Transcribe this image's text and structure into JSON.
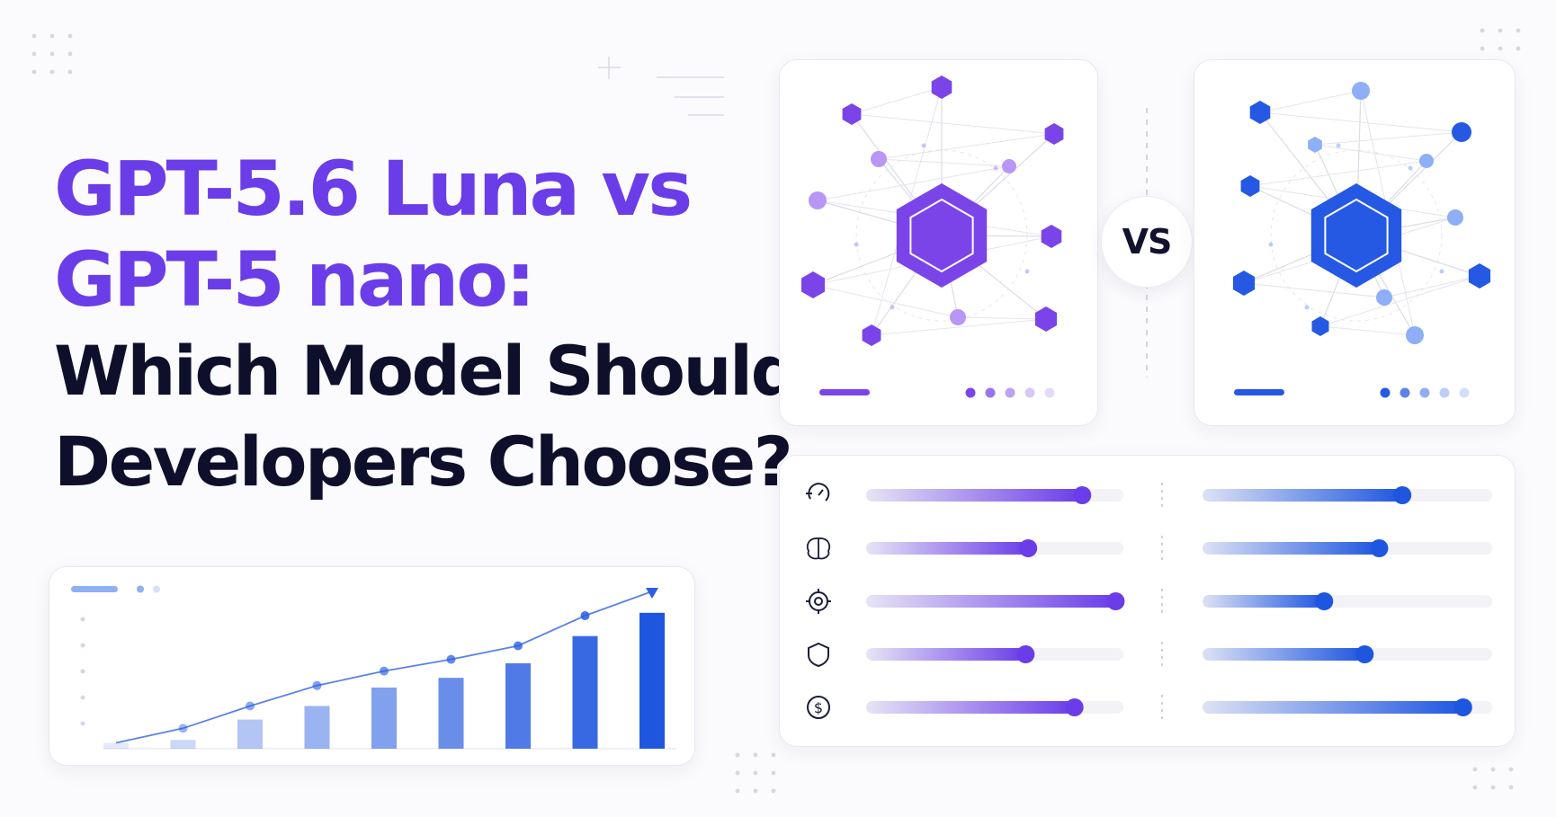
{
  "headline": {
    "line1": "GPT-5.6 Luna vs",
    "line2": "GPT-5 nano:",
    "line3": "Which Model Should",
    "line4": "Developers Choose?"
  },
  "vs_label": "VS",
  "colors": {
    "purple": "#6a3de8",
    "blue": "#1f56e0",
    "dark_text": "#0e0f2b",
    "track": "#f1f1f6"
  },
  "models": [
    {
      "key": "luna",
      "accent": "purple",
      "carousel_dots": 5,
      "active_dot": 0
    },
    {
      "key": "nano",
      "accent": "blue",
      "carousel_dots": 5,
      "active_dot": 0
    }
  ],
  "metrics": [
    {
      "icon": "speed-icon",
      "left_level": 0.84,
      "right_level": 0.69
    },
    {
      "icon": "brain-icon",
      "left_level": 0.63,
      "right_level": 0.61
    },
    {
      "icon": "target-icon",
      "left_level": 0.97,
      "right_level": 0.42
    },
    {
      "icon": "shield-icon",
      "left_level": 0.62,
      "right_level": 0.56
    },
    {
      "icon": "dollar-icon",
      "left_level": 0.81,
      "right_level": 0.9
    }
  ],
  "trend_chart": {
    "bars": [
      0.06,
      0.09,
      0.3,
      0.44,
      0.63,
      0.73,
      0.88,
      1.16,
      1.4
    ],
    "line": [
      0.06,
      0.21,
      0.44,
      0.65,
      0.8,
      0.92,
      1.06,
      1.37,
      1.62
    ]
  }
}
